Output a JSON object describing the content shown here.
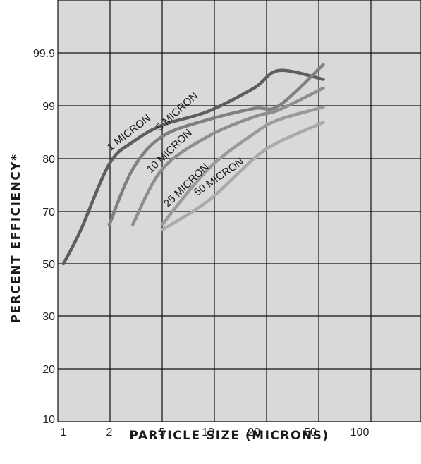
{
  "chart_data": {
    "type": "line",
    "xlabel": "PARTICLE SIZE (MICRONS)",
    "ylabel": "PERCENT EFFICIENCY*",
    "x_scale": "log",
    "xlim": [
      1,
      300
    ],
    "x_ticks": [
      "1",
      "2",
      "5",
      "10",
      "20",
      "50",
      "100"
    ],
    "y_ticks": [
      "10",
      "20",
      "30",
      "50",
      "70",
      "80",
      "99",
      "99.9"
    ],
    "grid": true,
    "background": "#d9d9d9",
    "series": [
      {
        "name": "1 MICRON",
        "color": "#5e5e5e",
        "points": [
          [
            1,
            50
          ],
          [
            1.3,
            63
          ],
          [
            2,
            79
          ],
          [
            3,
            86
          ],
          [
            5,
            92
          ],
          [
            10,
            97
          ],
          [
            20,
            99.3
          ],
          [
            30,
            99.6
          ],
          [
            60,
            99.95
          ]
        ]
      },
      {
        "name": "5 MICRON",
        "color": "#808080",
        "points": [
          [
            2,
            65
          ],
          [
            3,
            78
          ],
          [
            5,
            88
          ],
          [
            10,
            94
          ],
          [
            20,
            98
          ],
          [
            30,
            99
          ],
          [
            60,
            99.7
          ]
        ]
      },
      {
        "name": "10 MICRON",
        "color": "#8e8e8e",
        "points": [
          [
            3,
            65
          ],
          [
            5,
            78
          ],
          [
            10,
            88
          ],
          [
            20,
            95
          ],
          [
            30,
            97.5
          ],
          [
            60,
            99.3
          ]
        ]
      },
      {
        "name": "25 MICRON",
        "color": "#9a9a9a",
        "points": [
          [
            5,
            65
          ],
          [
            10,
            78
          ],
          [
            20,
            89
          ],
          [
            30,
            94
          ],
          [
            60,
            98.5
          ]
        ]
      },
      {
        "name": "50 MICRON",
        "color": "#aaaaaa",
        "points": [
          [
            5,
            63
          ],
          [
            10,
            72
          ],
          [
            20,
            80
          ],
          [
            30,
            86
          ],
          [
            60,
            93
          ]
        ]
      }
    ]
  }
}
